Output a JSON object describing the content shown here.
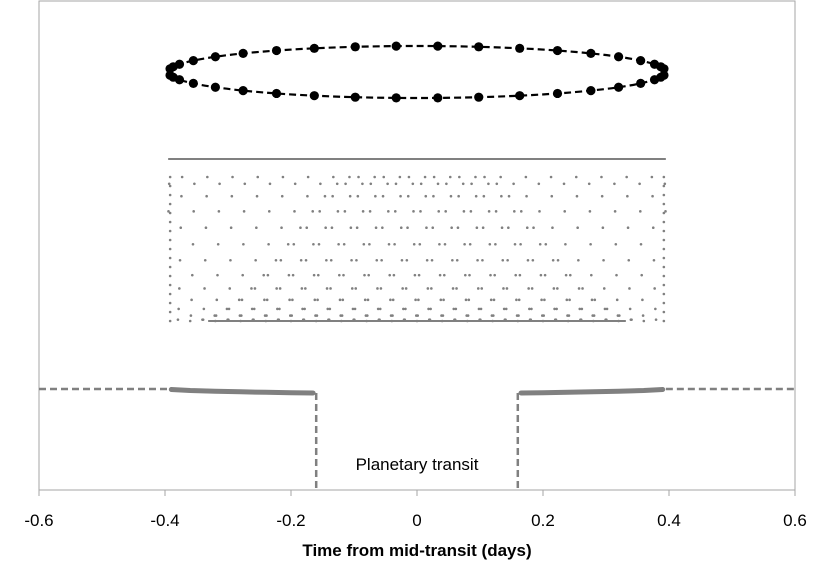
{
  "chart_data": {
    "type": "scatter",
    "title": "",
    "xlabel": "Time from mid-transit (days)",
    "ylabel": "",
    "xlim": [
      -0.6,
      0.6
    ],
    "xticks": [
      "-0.6",
      "-0.4",
      "-0.2",
      "0",
      "0.2",
      "0.4",
      "0.6"
    ],
    "grid": false,
    "legend": "none",
    "annotations": [
      {
        "text": "Planetary transit",
        "x": 0.0
      }
    ],
    "colors": {
      "orbit": "#000000",
      "dots": "#808080",
      "lightcurve": "#808080",
      "frame": "#a6a6a6"
    },
    "series": [
      {
        "role": "orbit-ellipse",
        "style": "black filled circles joined by dashed line",
        "x_center": 0.0,
        "x_half_width": 0.395,
        "x": [
          -0.392,
          -0.387,
          -0.377,
          -0.355,
          -0.32,
          -0.276,
          -0.223,
          -0.163,
          -0.098,
          -0.033,
          0.033,
          0.098,
          0.163,
          0.223,
          0.276,
          0.32,
          0.355,
          0.377,
          0.387,
          0.392,
          0.392,
          0.387,
          0.377,
          0.355,
          0.32,
          0.276,
          0.223,
          0.163,
          0.098,
          0.033,
          -0.033,
          -0.098,
          -0.163,
          -0.223,
          -0.276,
          -0.32,
          -0.355,
          -0.377,
          -0.387,
          -0.392
        ]
      },
      {
        "role": "transit-chords",
        "style": "small grey dots forming overlapping transit dips",
        "x_range": [
          -0.395,
          0.395
        ],
        "chord_centers": [
          -0.36,
          -0.32,
          -0.28,
          -0.24,
          -0.2,
          -0.16,
          -0.12,
          -0.08,
          -0.04,
          0.0,
          0.04,
          0.08,
          0.12,
          0.16,
          0.2,
          0.24,
          0.28,
          0.32,
          0.36
        ]
      },
      {
        "role": "light-curve",
        "style": "grey dashed outside, solid points inside",
        "x": [
          -0.6,
          -0.395,
          -0.39,
          -0.36,
          -0.32,
          -0.28,
          -0.24,
          -0.2,
          -0.165,
          -0.16,
          -0.16,
          0.16,
          0.16,
          0.165,
          0.2,
          0.24,
          0.28,
          0.32,
          0.36,
          0.39,
          0.395,
          0.6
        ],
        "y": [
          1.0,
          1.0,
          0.995,
          0.985,
          0.978,
          0.972,
          0.967,
          0.963,
          0.96,
          0.96,
          0.0,
          0.0,
          0.96,
          0.96,
          0.963,
          0.967,
          0.972,
          0.978,
          0.985,
          0.995,
          1.0,
          1.0
        ]
      }
    ]
  }
}
